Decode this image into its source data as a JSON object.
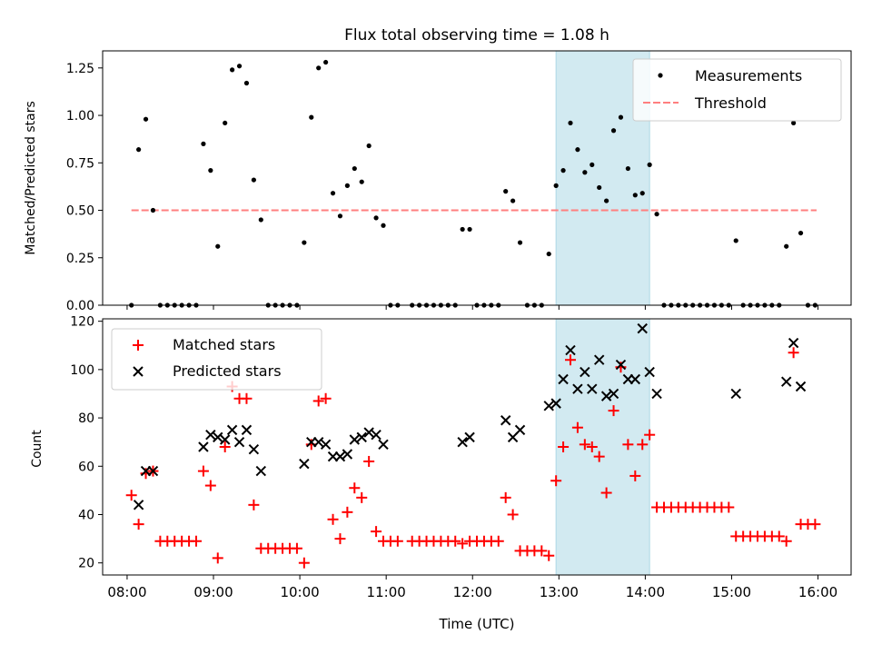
{
  "title": "Flux total observing time = 1.08 h",
  "colors": {
    "measurement": "#000000",
    "threshold": "#ff7f7f",
    "matched": "#ff0000",
    "predicted": "#000000",
    "highlight": "#add8e6"
  },
  "chart_data": [
    {
      "type": "scatter",
      "panel": "top",
      "ylabel": "Matched/Predicted stars",
      "ylim": [
        0,
        1.34
      ],
      "yticks": [
        0.0,
        0.25,
        0.5,
        0.75,
        1.0,
        1.25
      ],
      "ytick_labels": [
        "0.00",
        "0.25",
        "0.50",
        "0.75",
        "1.00",
        "1.25"
      ],
      "xlim": [
        "07:43",
        "16:23"
      ],
      "xticks": [
        "08:00",
        "09:00",
        "10:00",
        "11:00",
        "12:00",
        "13:00",
        "14:00",
        "15:00",
        "16:00"
      ],
      "highlight_span": [
        "12:58",
        "14:03"
      ],
      "legend": {
        "placement": "top-right",
        "entries": [
          "Measurements",
          "Threshold"
        ]
      },
      "threshold": {
        "name": "Threshold",
        "value": 0.5,
        "x_range": [
          "08:03",
          "15:59"
        ]
      },
      "series": [
        {
          "name": "Measurements",
          "points": [
            [
              "08:03",
              0.0
            ],
            [
              "08:08",
              0.82
            ],
            [
              "08:13",
              0.98
            ],
            [
              "08:18",
              0.5
            ],
            [
              "08:23",
              0.0
            ],
            [
              "08:28",
              0.0
            ],
            [
              "08:33",
              0.0
            ],
            [
              "08:38",
              0.0
            ],
            [
              "08:43",
              0.0
            ],
            [
              "08:48",
              0.0
            ],
            [
              "08:53",
              0.85
            ],
            [
              "08:58",
              0.71
            ],
            [
              "09:03",
              0.31
            ],
            [
              "09:08",
              0.96
            ],
            [
              "09:13",
              1.24
            ],
            [
              "09:18",
              1.26
            ],
            [
              "09:23",
              1.17
            ],
            [
              "09:28",
              0.66
            ],
            [
              "09:33",
              0.45
            ],
            [
              "09:38",
              0.0
            ],
            [
              "09:43",
              0.0
            ],
            [
              "09:48",
              0.0
            ],
            [
              "09:53",
              0.0
            ],
            [
              "09:58",
              0.0
            ],
            [
              "10:03",
              0.33
            ],
            [
              "10:08",
              0.99
            ],
            [
              "10:13",
              1.25
            ],
            [
              "10:18",
              1.28
            ],
            [
              "10:23",
              0.59
            ],
            [
              "10:28",
              0.47
            ],
            [
              "10:33",
              0.63
            ],
            [
              "10:38",
              0.72
            ],
            [
              "10:43",
              0.65
            ],
            [
              "10:48",
              0.84
            ],
            [
              "10:53",
              0.46
            ],
            [
              "10:58",
              0.42
            ],
            [
              "11:03",
              0.0
            ],
            [
              "11:08",
              0.0
            ],
            [
              "11:18",
              0.0
            ],
            [
              "11:23",
              0.0
            ],
            [
              "11:28",
              0.0
            ],
            [
              "11:33",
              0.0
            ],
            [
              "11:38",
              0.0
            ],
            [
              "11:43",
              0.0
            ],
            [
              "11:48",
              0.0
            ],
            [
              "11:53",
              0.4
            ],
            [
              "11:58",
              0.4
            ],
            [
              "12:03",
              0.0
            ],
            [
              "12:08",
              0.0
            ],
            [
              "12:13",
              0.0
            ],
            [
              "12:18",
              0.0
            ],
            [
              "12:23",
              0.6
            ],
            [
              "12:28",
              0.55
            ],
            [
              "12:33",
              0.33
            ],
            [
              "12:38",
              0.0
            ],
            [
              "12:43",
              0.0
            ],
            [
              "12:48",
              0.0
            ],
            [
              "12:53",
              0.27
            ],
            [
              "12:58",
              0.63
            ],
            [
              "13:03",
              0.71
            ],
            [
              "13:08",
              0.96
            ],
            [
              "13:13",
              0.82
            ],
            [
              "13:18",
              0.7
            ],
            [
              "13:23",
              0.74
            ],
            [
              "13:28",
              0.62
            ],
            [
              "13:33",
              0.55
            ],
            [
              "13:38",
              0.92
            ],
            [
              "13:43",
              0.99
            ],
            [
              "13:48",
              0.72
            ],
            [
              "13:53",
              0.58
            ],
            [
              "13:58",
              0.59
            ],
            [
              "14:03",
              0.74
            ],
            [
              "14:08",
              0.48
            ],
            [
              "14:13",
              0.0
            ],
            [
              "14:18",
              0.0
            ],
            [
              "14:23",
              0.0
            ],
            [
              "14:28",
              0.0
            ],
            [
              "14:33",
              0.0
            ],
            [
              "14:38",
              0.0
            ],
            [
              "14:43",
              0.0
            ],
            [
              "14:48",
              0.0
            ],
            [
              "14:53",
              0.0
            ],
            [
              "14:58",
              0.0
            ],
            [
              "15:03",
              0.34
            ],
            [
              "15:08",
              0.0
            ],
            [
              "15:13",
              0.0
            ],
            [
              "15:18",
              0.0
            ],
            [
              "15:23",
              0.0
            ],
            [
              "15:28",
              0.0
            ],
            [
              "15:33",
              0.0
            ],
            [
              "15:38",
              0.31
            ],
            [
              "15:43",
              0.96
            ],
            [
              "15:48",
              0.38
            ],
            [
              "15:53",
              0.0
            ],
            [
              "15:58",
              0.0
            ]
          ]
        }
      ]
    },
    {
      "type": "scatter",
      "panel": "bottom",
      "xlabel": "Time (UTC)",
      "ylabel": "Count",
      "ylim": [
        15,
        121
      ],
      "yticks": [
        20,
        40,
        60,
        80,
        100,
        120
      ],
      "ytick_labels": [
        "20",
        "40",
        "60",
        "80",
        "100",
        "120"
      ],
      "xlim": [
        "07:43",
        "16:23"
      ],
      "xticks": [
        "08:00",
        "09:00",
        "10:00",
        "11:00",
        "12:00",
        "13:00",
        "14:00",
        "15:00",
        "16:00"
      ],
      "highlight_span": [
        "12:58",
        "14:03"
      ],
      "legend": {
        "placement": "top-left",
        "entries": [
          "Matched stars",
          "Predicted stars"
        ]
      },
      "series": [
        {
          "name": "Matched stars",
          "marker": "plus",
          "points": [
            [
              "08:03",
              48
            ],
            [
              "08:08",
              36
            ],
            [
              "08:13",
              57
            ],
            [
              "08:18",
              58
            ],
            [
              "08:23",
              29
            ],
            [
              "08:28",
              29
            ],
            [
              "08:33",
              29
            ],
            [
              "08:38",
              29
            ],
            [
              "08:43",
              29
            ],
            [
              "08:48",
              29
            ],
            [
              "08:53",
              58
            ],
            [
              "08:58",
              52
            ],
            [
              "09:03",
              22
            ],
            [
              "09:08",
              68
            ],
            [
              "09:13",
              93
            ],
            [
              "09:18",
              88
            ],
            [
              "09:23",
              88
            ],
            [
              "09:28",
              44
            ],
            [
              "09:33",
              26
            ],
            [
              "09:38",
              26
            ],
            [
              "09:43",
              26
            ],
            [
              "09:48",
              26
            ],
            [
              "09:53",
              26
            ],
            [
              "09:58",
              26
            ],
            [
              "10:03",
              20
            ],
            [
              "10:08",
              69
            ],
            [
              "10:13",
              87
            ],
            [
              "10:18",
              88
            ],
            [
              "10:23",
              38
            ],
            [
              "10:28",
              30
            ],
            [
              "10:33",
              41
            ],
            [
              "10:38",
              51
            ],
            [
              "10:43",
              47
            ],
            [
              "10:48",
              62
            ],
            [
              "10:53",
              33
            ],
            [
              "10:58",
              29
            ],
            [
              "11:03",
              29
            ],
            [
              "11:08",
              29
            ],
            [
              "11:18",
              29
            ],
            [
              "11:23",
              29
            ],
            [
              "11:28",
              29
            ],
            [
              "11:33",
              29
            ],
            [
              "11:38",
              29
            ],
            [
              "11:43",
              29
            ],
            [
              "11:48",
              29
            ],
            [
              "11:53",
              28
            ],
            [
              "11:58",
              29
            ],
            [
              "12:03",
              29
            ],
            [
              "12:08",
              29
            ],
            [
              "12:13",
              29
            ],
            [
              "12:18",
              29
            ],
            [
              "12:23",
              47
            ],
            [
              "12:28",
              40
            ],
            [
              "12:33",
              25
            ],
            [
              "12:38",
              25
            ],
            [
              "12:43",
              25
            ],
            [
              "12:48",
              25
            ],
            [
              "12:53",
              23
            ],
            [
              "12:58",
              54
            ],
            [
              "13:03",
              68
            ],
            [
              "13:08",
              104
            ],
            [
              "13:13",
              76
            ],
            [
              "13:18",
              69
            ],
            [
              "13:23",
              68
            ],
            [
              "13:28",
              64
            ],
            [
              "13:33",
              49
            ],
            [
              "13:38",
              83
            ],
            [
              "13:43",
              101
            ],
            [
              "13:48",
              69
            ],
            [
              "13:53",
              56
            ],
            [
              "13:58",
              69
            ],
            [
              "14:03",
              73
            ],
            [
              "14:08",
              43
            ],
            [
              "14:13",
              43
            ],
            [
              "14:18",
              43
            ],
            [
              "14:23",
              43
            ],
            [
              "14:28",
              43
            ],
            [
              "14:33",
              43
            ],
            [
              "14:38",
              43
            ],
            [
              "14:43",
              43
            ],
            [
              "14:48",
              43
            ],
            [
              "14:53",
              43
            ],
            [
              "14:58",
              43
            ],
            [
              "15:03",
              31
            ],
            [
              "15:08",
              31
            ],
            [
              "15:13",
              31
            ],
            [
              "15:18",
              31
            ],
            [
              "15:23",
              31
            ],
            [
              "15:28",
              31
            ],
            [
              "15:33",
              31
            ],
            [
              "15:38",
              29
            ],
            [
              "15:43",
              107
            ],
            [
              "15:48",
              36
            ],
            [
              "15:53",
              36
            ],
            [
              "15:58",
              36
            ]
          ]
        },
        {
          "name": "Predicted stars",
          "marker": "x",
          "points": [
            [
              "08:08",
              44
            ],
            [
              "08:13",
              58
            ],
            [
              "08:18",
              58
            ],
            [
              "08:53",
              68
            ],
            [
              "08:58",
              73
            ],
            [
              "09:03",
              72
            ],
            [
              "09:08",
              71
            ],
            [
              "09:13",
              75
            ],
            [
              "09:18",
              70
            ],
            [
              "09:23",
              75
            ],
            [
              "09:28",
              67
            ],
            [
              "09:33",
              58
            ],
            [
              "10:03",
              61
            ],
            [
              "10:08",
              70
            ],
            [
              "10:13",
              70
            ],
            [
              "10:18",
              69
            ],
            [
              "10:23",
              64
            ],
            [
              "10:28",
              64
            ],
            [
              "10:33",
              65
            ],
            [
              "10:38",
              71
            ],
            [
              "10:43",
              72
            ],
            [
              "10:48",
              74
            ],
            [
              "10:53",
              73
            ],
            [
              "10:58",
              69
            ],
            [
              "11:53",
              70
            ],
            [
              "11:58",
              72
            ],
            [
              "12:23",
              79
            ],
            [
              "12:28",
              72
            ],
            [
              "12:33",
              75
            ],
            [
              "12:53",
              85
            ],
            [
              "12:58",
              86
            ],
            [
              "13:03",
              96
            ],
            [
              "13:08",
              108
            ],
            [
              "13:13",
              92
            ],
            [
              "13:18",
              99
            ],
            [
              "13:23",
              92
            ],
            [
              "13:28",
              104
            ],
            [
              "13:33",
              89
            ],
            [
              "13:38",
              90
            ],
            [
              "13:43",
              102
            ],
            [
              "13:48",
              96
            ],
            [
              "13:53",
              96
            ],
            [
              "13:58",
              117
            ],
            [
              "14:03",
              99
            ],
            [
              "14:08",
              90
            ],
            [
              "15:03",
              90
            ],
            [
              "15:38",
              95
            ],
            [
              "15:43",
              111
            ],
            [
              "15:48",
              93
            ]
          ]
        }
      ]
    }
  ]
}
